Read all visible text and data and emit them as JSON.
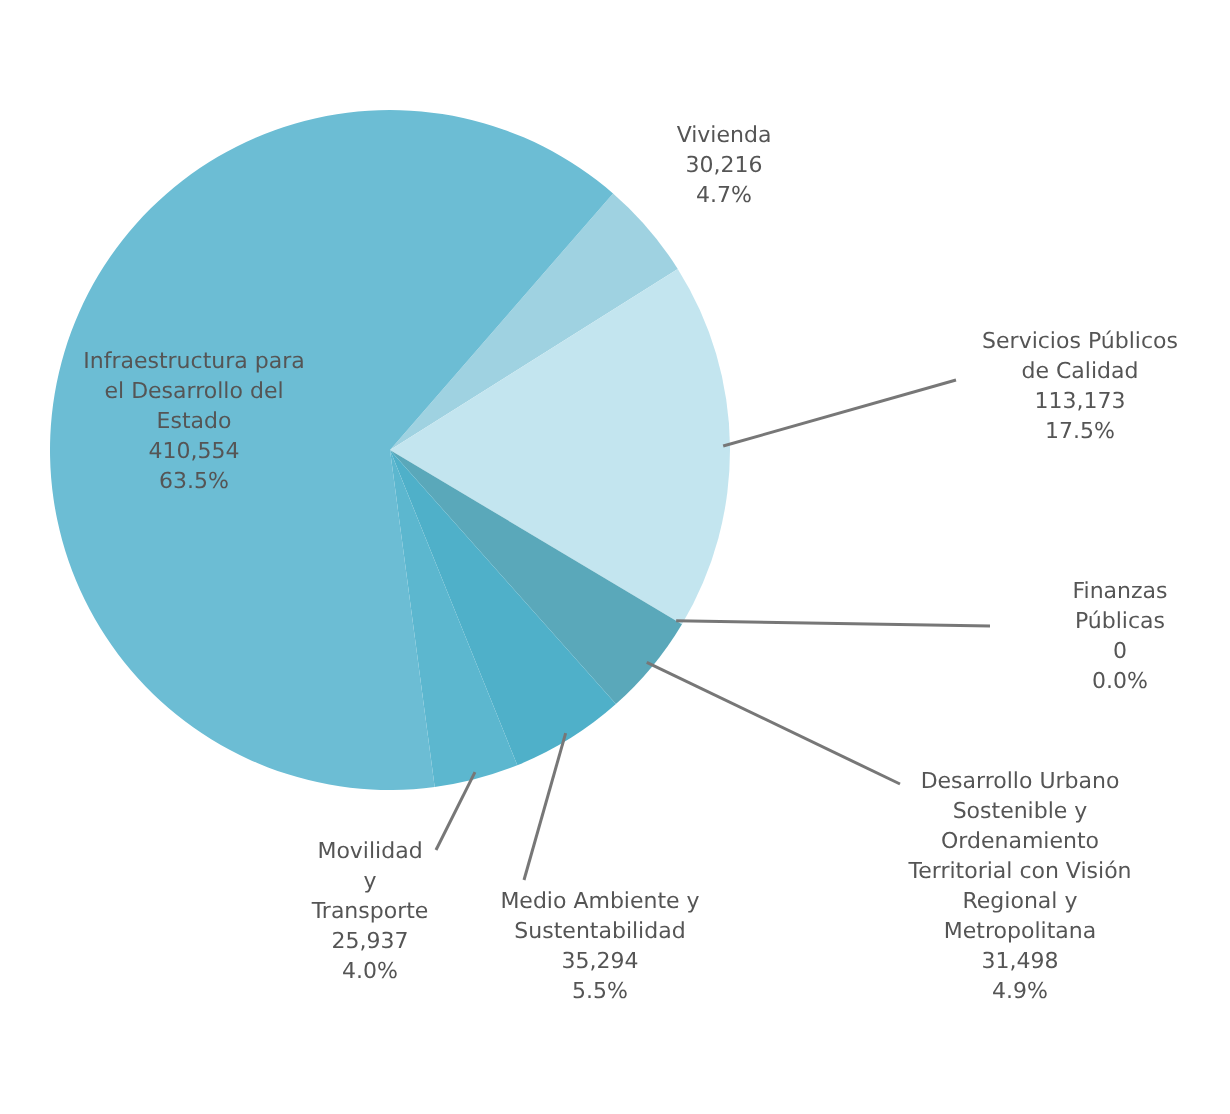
{
  "chart_data": {
    "type": "pie",
    "categories": [
      "Vivienda",
      "Servicios Públicos de Calidad",
      "Finanzas Públicas",
      "Desarrollo Urbano Sostenible y Ordenamiento Territorial con Visión Regional y Metropolitana",
      "Medio Ambiente y Sustentabilidad",
      "Movilidad y Transporte",
      "Infraestructura para el Desarrollo del Estado"
    ],
    "values": [
      30216,
      113173,
      0,
      31498,
      35294,
      25937,
      410554
    ],
    "value_labels": [
      "30,216 4.7%",
      "113,173 17.5%",
      "0 0.0%",
      "31,498 4.9%",
      "35,294 5.5%",
      "25,937 4.0%",
      "410,554 63.5%"
    ],
    "colors": [
      "#9fd2e1",
      "#c3e5ef",
      "#5aa8ba",
      "#5aa8ba",
      "#4fb0c9",
      "#5cb7cf",
      "#6cbdd4"
    ]
  }
}
